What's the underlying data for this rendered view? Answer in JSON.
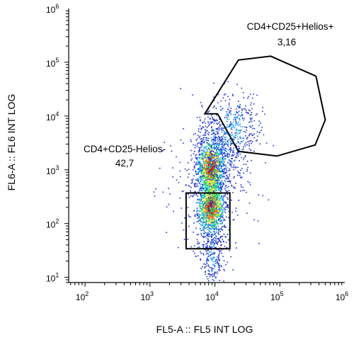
{
  "chart_data": {
    "type": "scatter",
    "plot_style": "flow-cytometry-density-dot-plot",
    "xlabel": "FL5-A :: FL5 INT LOG",
    "ylabel": "FL6-A :: FL6 INT LOG",
    "x_scale": "log",
    "y_scale": "log",
    "xlim": [
      56,
      1000000
    ],
    "ylim": [
      8,
      1000000
    ],
    "x_ticks": [
      {
        "value": 100,
        "base": "10",
        "exp": "2"
      },
      {
        "value": 1000,
        "base": "10",
        "exp": "3"
      },
      {
        "value": 10000,
        "base": "10",
        "exp": "4"
      },
      {
        "value": 100000,
        "base": "10",
        "exp": "5"
      },
      {
        "value": 1000000,
        "base": "10",
        "exp": "6"
      }
    ],
    "y_ticks": [
      {
        "value": 10,
        "base": "10",
        "exp": "1"
      },
      {
        "value": 100,
        "base": "10",
        "exp": "2"
      },
      {
        "value": 1000,
        "base": "10",
        "exp": "3"
      },
      {
        "value": 10000,
        "base": "10",
        "exp": "4"
      },
      {
        "value": 100000,
        "base": "10",
        "exp": "5"
      },
      {
        "value": 1000000,
        "base": "10",
        "exp": "6"
      }
    ],
    "density_colors": [
      "#1f2fd0",
      "#20a0f0",
      "#20d870",
      "#f0e020",
      "#f07010",
      "#d01010"
    ],
    "gates": [
      {
        "label": "CD4+CD25-Helios-",
        "value": "42,7",
        "shape": "rectangle",
        "x_range": [
          3600,
          17000
        ],
        "y_range": [
          34,
          370
        ]
      },
      {
        "label": "CD4+CD25+Helios+",
        "value": "3,16",
        "shape": "polygon",
        "vertices": [
          [
            7000,
            11000
          ],
          [
            23000,
            110000
          ],
          [
            72000,
            130000
          ],
          [
            360000,
            55000
          ],
          [
            500000,
            8500
          ],
          [
            350000,
            2900
          ],
          [
            90000,
            1800
          ],
          [
            23000,
            2200
          ],
          [
            11000,
            11000
          ]
        ]
      }
    ]
  }
}
